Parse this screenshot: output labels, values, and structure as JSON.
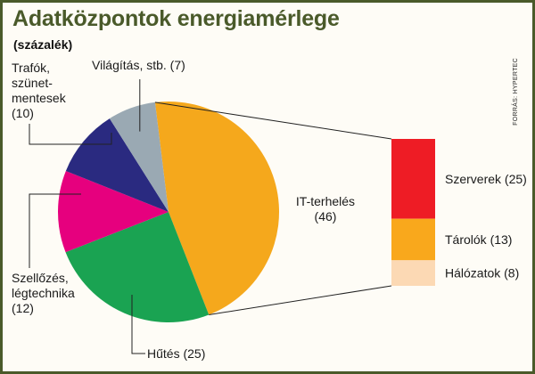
{
  "header": {
    "title": "Adatközpontok energiamérlege",
    "subtitle": "(százalék)",
    "source": "FORRÁS: HYPERTEC"
  },
  "colors": {
    "it": "#f5a81c",
    "cooling": "#1aa352",
    "ventilation": "#e6007e",
    "transformers": "#2a2a80",
    "lighting": "#9aa9b3",
    "servers": "#ee1c25",
    "storage": "#f9a81c",
    "network": "#fcd9b4",
    "lines": "#222222"
  },
  "chart_data": [
    {
      "type": "pie",
      "title": "Adatközpontok energiamérlege",
      "subtitle": "(százalék)",
      "slices": [
        {
          "key": "it",
          "label_lines": [
            "IT-terhelés",
            "(46)"
          ],
          "value": 46
        },
        {
          "key": "cooling",
          "label_lines": [
            "Hűtés (25)"
          ],
          "value": 25
        },
        {
          "key": "ventilation",
          "label_lines": [
            "Szellőzés,",
            "légtechnika",
            "(12)"
          ],
          "value": 12
        },
        {
          "key": "transformers",
          "label_lines": [
            "Trafók,",
            "szünet-",
            "mentesek",
            "(10)"
          ],
          "value": 10
        },
        {
          "key": "lighting",
          "label_lines": [
            "Világítás, stb. (7)"
          ],
          "value": 7
        }
      ]
    },
    {
      "type": "bar",
      "stacked": true,
      "parent": "IT-terhelés",
      "segments": [
        {
          "key": "servers",
          "label": "Szerverek (25)",
          "value": 25
        },
        {
          "key": "storage",
          "label": "Tárolók (13)",
          "value": 13
        },
        {
          "key": "network",
          "label": "Hálózatok (8)",
          "value": 8
        }
      ]
    }
  ]
}
